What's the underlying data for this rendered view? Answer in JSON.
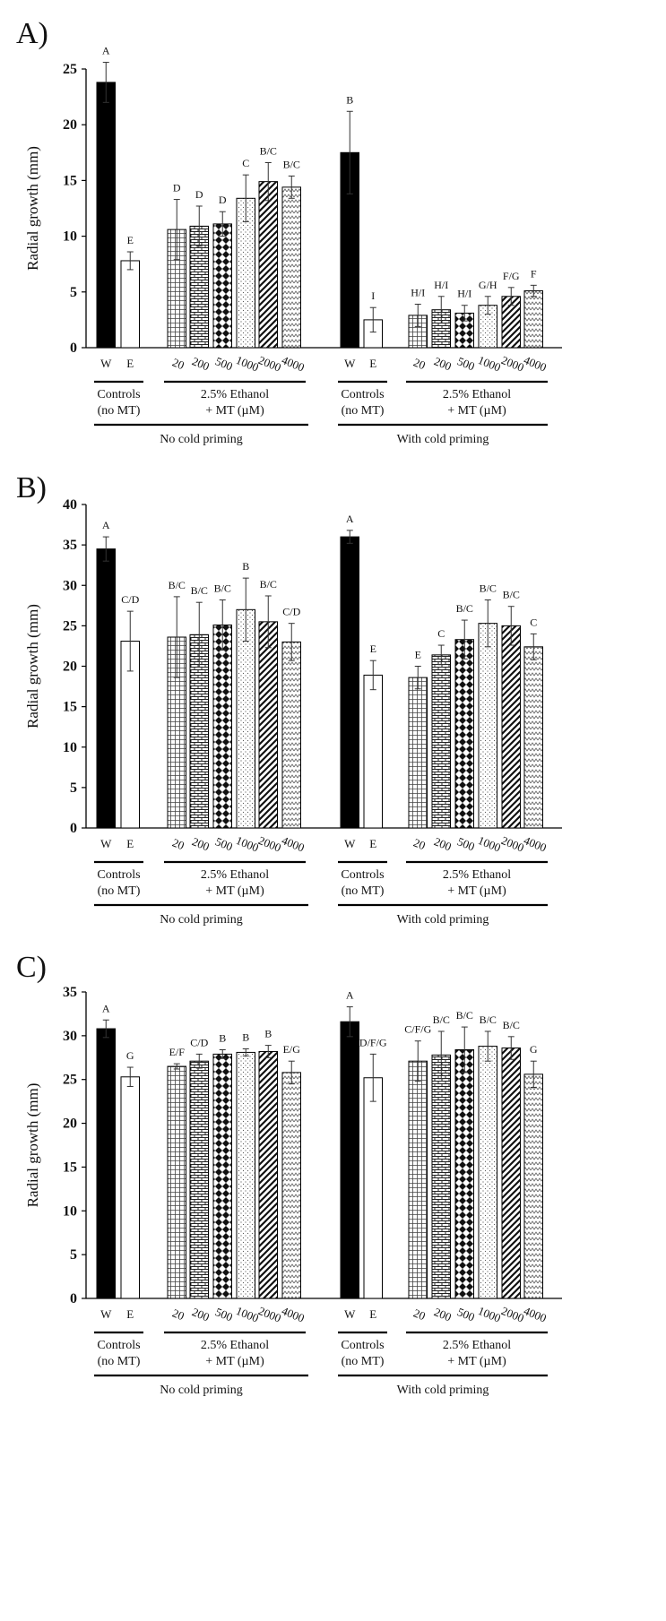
{
  "figure": {
    "group_labels": {
      "controls_line1": "Controls",
      "controls_line2": "(no MT)",
      "treat_line1": "2.5% Ethanol",
      "treat_line2": "+ MT (µM)"
    },
    "condition_labels": [
      "No cold priming",
      "With cold priming"
    ],
    "patterns": [
      "black",
      "white",
      "grid",
      "brick",
      "diamond",
      "dots",
      "diagonal",
      "zigzag"
    ]
  },
  "chart_data": [
    {
      "type": "bar",
      "panel": "A)",
      "ylabel": "Radial growth (mm)",
      "ylim": [
        0,
        25
      ],
      "yticks": [
        "0",
        "5",
        "10",
        "15",
        "20",
        "25"
      ],
      "categories": [
        "W",
        "E",
        "20",
        "200",
        "500",
        "1000",
        "2000",
        "4000",
        "W",
        "E",
        "20",
        "200",
        "500",
        "1000",
        "2000",
        "4000"
      ],
      "values": [
        23.8,
        7.8,
        10.6,
        10.9,
        11.1,
        13.4,
        14.9,
        14.4,
        17.5,
        2.5,
        2.9,
        3.4,
        3.1,
        3.8,
        4.6,
        5.1
      ],
      "errors": [
        1.8,
        0.8,
        2.7,
        1.8,
        1.1,
        2.1,
        1.7,
        1.0,
        3.7,
        1.1,
        1.0,
        1.2,
        0.7,
        0.8,
        0.8,
        0.5
      ],
      "letters": [
        "A",
        "E",
        "D",
        "D",
        "D",
        "C",
        "B/C",
        "B/C",
        "B",
        "I",
        "H/I",
        "H/I",
        "H/I",
        "G/H",
        "F/G",
        "F"
      ]
    },
    {
      "type": "bar",
      "panel": "B)",
      "ylabel": "Radial growth (mm)",
      "ylim": [
        0,
        40
      ],
      "yticks": [
        "0",
        "5",
        "10",
        "15",
        "20",
        "25",
        "30",
        "35",
        "40"
      ],
      "categories": [
        "W",
        "E",
        "20",
        "200",
        "500",
        "1000",
        "2000",
        "4000",
        "W",
        "E",
        "20",
        "200",
        "500",
        "1000",
        "2000",
        "4000"
      ],
      "values": [
        34.5,
        23.1,
        23.6,
        23.9,
        25.1,
        27.0,
        25.5,
        23.0,
        36.0,
        18.9,
        18.6,
        21.4,
        23.3,
        25.3,
        25.0,
        22.4
      ],
      "errors": [
        1.5,
        3.7,
        5.0,
        4.0,
        3.1,
        3.9,
        3.2,
        2.3,
        0.8,
        1.8,
        1.4,
        1.2,
        2.4,
        2.9,
        2.4,
        1.6
      ],
      "letters": [
        "A",
        "C/D",
        "B/C",
        "B/C",
        "B/C",
        "B",
        "B/C",
        "C/D",
        "A",
        "E",
        "E",
        "C",
        "B/C",
        "B/C",
        "B/C",
        "C"
      ]
    },
    {
      "type": "bar",
      "panel": "C)",
      "ylabel": "Radial growth (mm)",
      "ylim": [
        0,
        35
      ],
      "yticks": [
        "0",
        "5",
        "10",
        "15",
        "20",
        "25",
        "30",
        "35"
      ],
      "categories": [
        "W",
        "E",
        "20",
        "200",
        "500",
        "1000",
        "2000",
        "4000",
        "W",
        "E",
        "20",
        "200",
        "500",
        "1000",
        "2000",
        "4000"
      ],
      "values": [
        30.8,
        25.3,
        26.5,
        27.1,
        27.9,
        28.1,
        28.2,
        25.8,
        31.6,
        25.2,
        27.1,
        27.8,
        28.4,
        28.8,
        28.6,
        25.6
      ],
      "errors": [
        1.0,
        1.1,
        0.3,
        0.8,
        0.5,
        0.4,
        0.7,
        1.3,
        1.7,
        2.7,
        2.3,
        2.7,
        2.6,
        1.7,
        1.3,
        1.5
      ],
      "letters": [
        "A",
        "G",
        "E/F",
        "C/D",
        "B",
        "B",
        "B",
        "E/G",
        "A",
        "D/F/G",
        "C/F/G",
        "B/C",
        "B/C",
        "B/C",
        "B/C",
        "G"
      ]
    }
  ]
}
